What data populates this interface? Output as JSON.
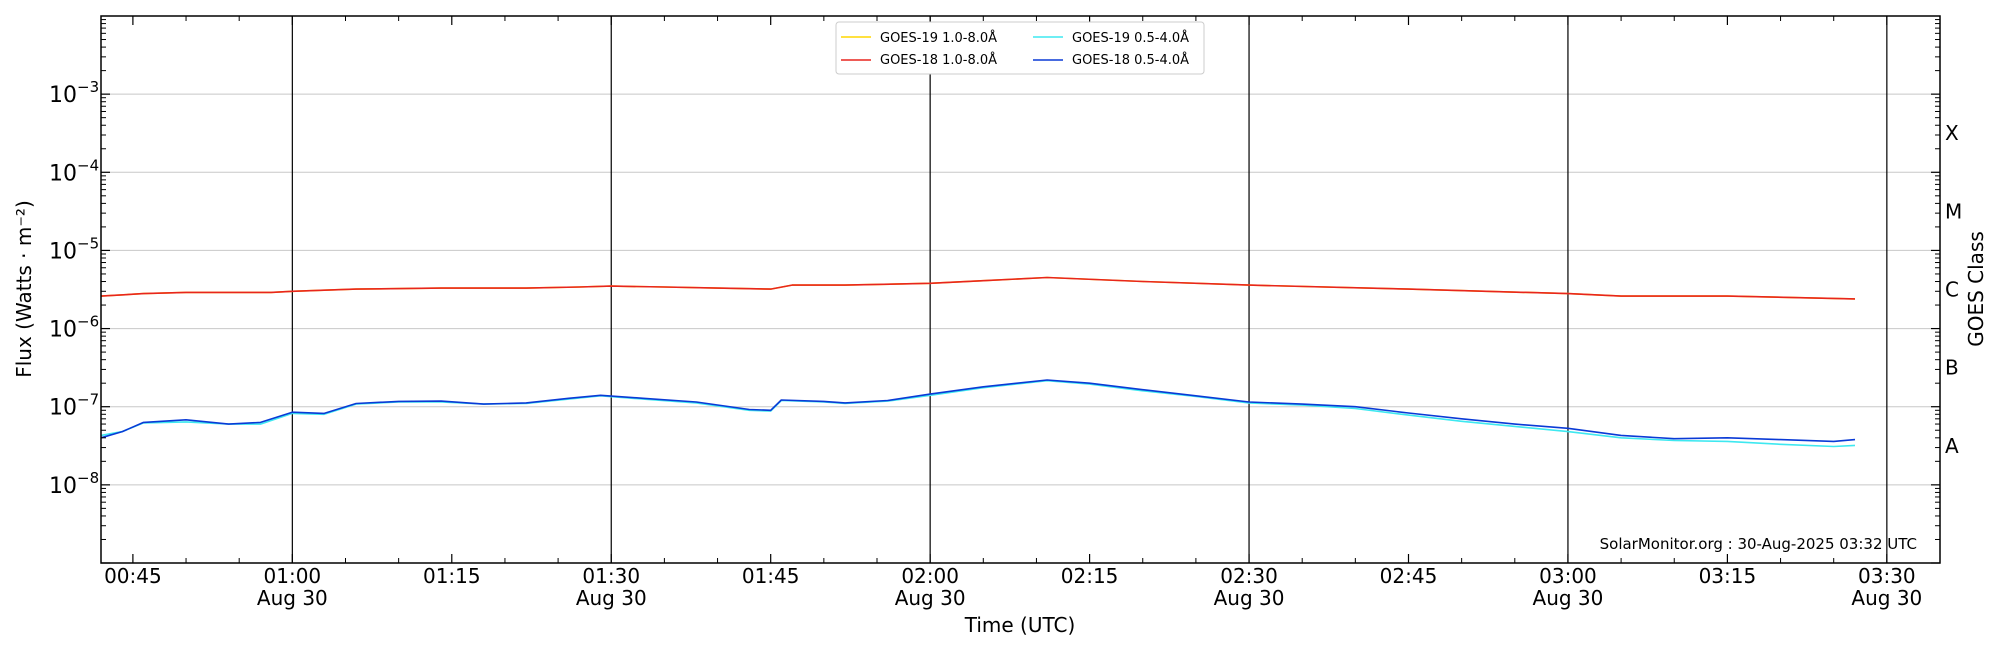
{
  "chart_data": {
    "type": "line",
    "title": "",
    "xlabel": "Time (UTC)",
    "ylabel": "Flux (Watts · m⁻²)",
    "y2label": "GOES Class",
    "yscale": "log",
    "ylim": [
      1e-09,
      0.01
    ],
    "xlim": [
      "2025-08-30 00:42",
      "2025-08-30 03:35"
    ],
    "grid": "horizontal gridlines at each decade; vertical lines at each 30 min",
    "legend_position": "top-center",
    "credit": "SolarMonitor.org : 30-Aug-2025 03:32 UTC",
    "y_ticks": [
      {
        "value": 1e-08,
        "base": "10",
        "exp": "−8"
      },
      {
        "value": 1e-07,
        "base": "10",
        "exp": "−7"
      },
      {
        "value": 1e-06,
        "base": "10",
        "exp": "−6"
      },
      {
        "value": 1e-05,
        "base": "10",
        "exp": "−5"
      },
      {
        "value": 0.0001,
        "base": "10",
        "exp": "−4"
      },
      {
        "value": 0.001,
        "base": "10",
        "exp": "−3"
      }
    ],
    "goes_classes": [
      {
        "label": "A",
        "value": 3.16e-08
      },
      {
        "label": "B",
        "value": 3.16e-07
      },
      {
        "label": "C",
        "value": 3.16e-06
      },
      {
        "label": "M",
        "value": 3.16e-05
      },
      {
        "label": "X",
        "value": 0.000316
      }
    ],
    "x_ticks": [
      {
        "time": "2025-08-30 00:45",
        "label": "00:45",
        "sub": ""
      },
      {
        "time": "2025-08-30 01:00",
        "label": "01:00",
        "sub": "Aug 30"
      },
      {
        "time": "2025-08-30 01:15",
        "label": "01:15",
        "sub": ""
      },
      {
        "time": "2025-08-30 01:30",
        "label": "01:30",
        "sub": "Aug 30"
      },
      {
        "time": "2025-08-30 01:45",
        "label": "01:45",
        "sub": ""
      },
      {
        "time": "2025-08-30 02:00",
        "label": "02:00",
        "sub": "Aug 30"
      },
      {
        "time": "2025-08-30 02:15",
        "label": "02:15",
        "sub": ""
      },
      {
        "time": "2025-08-30 02:30",
        "label": "02:30",
        "sub": "Aug 30"
      },
      {
        "time": "2025-08-30 02:45",
        "label": "02:45",
        "sub": ""
      },
      {
        "time": "2025-08-30 03:00",
        "label": "03:00",
        "sub": "Aug 30"
      },
      {
        "time": "2025-08-30 03:15",
        "label": "03:15",
        "sub": ""
      },
      {
        "time": "2025-08-30 03:30",
        "label": "03:30",
        "sub": "Aug 30"
      }
    ],
    "vlines": [
      "2025-08-30 01:00",
      "2025-08-30 01:30",
      "2025-08-30 02:00",
      "2025-08-30 02:30",
      "2025-08-30 03:00",
      "2025-08-30 03:30"
    ],
    "series": [
      {
        "name": "GOES-19 1.0-8.0Å",
        "color": "#ffd700",
        "x": [
          "2025-08-30 00:42",
          "2025-08-30 00:46",
          "2025-08-30 00:50",
          "2025-08-30 00:55",
          "2025-08-30 00:58",
          "2025-08-30 01:00",
          "2025-08-30 01:03",
          "2025-08-30 01:06",
          "2025-08-30 01:14",
          "2025-08-30 01:22",
          "2025-08-30 01:27",
          "2025-08-30 01:30",
          "2025-08-30 01:35",
          "2025-08-30 01:40",
          "2025-08-30 01:45",
          "2025-08-30 01:47",
          "2025-08-30 01:52",
          "2025-08-30 02:00",
          "2025-08-30 02:05",
          "2025-08-30 02:11",
          "2025-08-30 02:20",
          "2025-08-30 02:30",
          "2025-08-30 02:45",
          "2025-08-30 03:00",
          "2025-08-30 03:05",
          "2025-08-30 03:15",
          "2025-08-30 03:27"
        ],
        "y": [
          2.6e-06,
          2.8e-06,
          2.9e-06,
          2.9e-06,
          2.9e-06,
          3e-06,
          3.1e-06,
          3.2e-06,
          3.3e-06,
          3.3e-06,
          3.4e-06,
          3.5e-06,
          3.4e-06,
          3.3e-06,
          3.2e-06,
          3.6e-06,
          3.6e-06,
          3.8e-06,
          4.1e-06,
          4.5e-06,
          4e-06,
          3.6e-06,
          3.2e-06,
          2.8e-06,
          2.6e-06,
          2.6e-06,
          2.4e-06
        ]
      },
      {
        "name": "GOES-18 1.0-8.0Å",
        "color": "#e8251e",
        "x": [
          "2025-08-30 00:42",
          "2025-08-30 00:46",
          "2025-08-30 00:50",
          "2025-08-30 00:55",
          "2025-08-30 00:58",
          "2025-08-30 01:00",
          "2025-08-30 01:03",
          "2025-08-30 01:06",
          "2025-08-30 01:14",
          "2025-08-30 01:22",
          "2025-08-30 01:27",
          "2025-08-30 01:30",
          "2025-08-30 01:35",
          "2025-08-30 01:40",
          "2025-08-30 01:45",
          "2025-08-30 01:47",
          "2025-08-30 01:52",
          "2025-08-30 02:00",
          "2025-08-30 02:05",
          "2025-08-30 02:11",
          "2025-08-30 02:20",
          "2025-08-30 02:30",
          "2025-08-30 02:45",
          "2025-08-30 03:00",
          "2025-08-30 03:05",
          "2025-08-30 03:15",
          "2025-08-30 03:27"
        ],
        "y": [
          2.6e-06,
          2.8e-06,
          2.9e-06,
          2.9e-06,
          2.9e-06,
          3e-06,
          3.1e-06,
          3.2e-06,
          3.3e-06,
          3.3e-06,
          3.4e-06,
          3.5e-06,
          3.4e-06,
          3.3e-06,
          3.2e-06,
          3.6e-06,
          3.6e-06,
          3.8e-06,
          4.1e-06,
          4.5e-06,
          4e-06,
          3.6e-06,
          3.2e-06,
          2.8e-06,
          2.6e-06,
          2.6e-06,
          2.4e-06
        ]
      },
      {
        "name": "GOES-19 0.5-4.0Å",
        "color": "#3ee8f0",
        "x": [
          "2025-08-30 00:42",
          "2025-08-30 00:44",
          "2025-08-30 00:46",
          "2025-08-30 00:50",
          "2025-08-30 00:54",
          "2025-08-30 00:57",
          "2025-08-30 01:00",
          "2025-08-30 01:03",
          "2025-08-30 01:06",
          "2025-08-30 01:10",
          "2025-08-30 01:14",
          "2025-08-30 01:18",
          "2025-08-30 01:22",
          "2025-08-30 01:26",
          "2025-08-30 01:29",
          "2025-08-30 01:33",
          "2025-08-30 01:38",
          "2025-08-30 01:43",
          "2025-08-30 01:45",
          "2025-08-30 01:46",
          "2025-08-30 01:50",
          "2025-08-30 01:52",
          "2025-08-30 01:56",
          "2025-08-30 02:00",
          "2025-08-30 02:05",
          "2025-08-30 02:11",
          "2025-08-30 02:15",
          "2025-08-30 02:20",
          "2025-08-30 02:25",
          "2025-08-30 02:30",
          "2025-08-30 02:35",
          "2025-08-30 02:40",
          "2025-08-30 02:45",
          "2025-08-30 02:50",
          "2025-08-30 02:55",
          "2025-08-30 03:00",
          "2025-08-30 03:05",
          "2025-08-30 03:10",
          "2025-08-30 03:15",
          "2025-08-30 03:20",
          "2025-08-30 03:25",
          "2025-08-30 03:27"
        ],
        "y": [
          4.3e-08,
          4.8e-08,
          6.2e-08,
          6.4e-08,
          6e-08,
          6e-08,
          8.2e-08,
          8e-08,
          1.08e-07,
          1.15e-07,
          1.15e-07,
          1.08e-07,
          1.1e-07,
          1.25e-07,
          1.38e-07,
          1.25e-07,
          1.12e-07,
          9e-08,
          8.8e-08,
          1.2e-07,
          1.15e-07,
          1.1e-07,
          1.18e-07,
          1.4e-07,
          1.75e-07,
          2.15e-07,
          1.95e-07,
          1.6e-07,
          1.35e-07,
          1.12e-07,
          1.05e-07,
          9.5e-08,
          7.8e-08,
          6.5e-08,
          5.6e-08,
          4.8e-08,
          4e-08,
          3.7e-08,
          3.6e-08,
          3.3e-08,
          3.1e-08,
          3.2e-08
        ]
      },
      {
        "name": "GOES-18 0.5-4.0Å",
        "color": "#0a3ad6",
        "x": [
          "2025-08-30 00:42",
          "2025-08-30 00:44",
          "2025-08-30 00:46",
          "2025-08-30 00:50",
          "2025-08-30 00:54",
          "2025-08-30 00:57",
          "2025-08-30 01:00",
          "2025-08-30 01:03",
          "2025-08-30 01:06",
          "2025-08-30 01:10",
          "2025-08-30 01:14",
          "2025-08-30 01:18",
          "2025-08-30 01:22",
          "2025-08-30 01:26",
          "2025-08-30 01:29",
          "2025-08-30 01:33",
          "2025-08-30 01:38",
          "2025-08-30 01:43",
          "2025-08-30 01:45",
          "2025-08-30 01:46",
          "2025-08-30 01:50",
          "2025-08-30 01:52",
          "2025-08-30 01:56",
          "2025-08-30 02:00",
          "2025-08-30 02:05",
          "2025-08-30 02:11",
          "2025-08-30 02:15",
          "2025-08-30 02:20",
          "2025-08-30 02:25",
          "2025-08-30 02:30",
          "2025-08-30 02:35",
          "2025-08-30 02:40",
          "2025-08-30 02:45",
          "2025-08-30 02:50",
          "2025-08-30 02:55",
          "2025-08-30 03:00",
          "2025-08-30 03:05",
          "2025-08-30 03:10",
          "2025-08-30 03:15",
          "2025-08-30 03:20",
          "2025-08-30 03:25",
          "2025-08-30 03:27"
        ],
        "y": [
          4e-08,
          4.8e-08,
          6.3e-08,
          6.8e-08,
          6e-08,
          6.3e-08,
          8.5e-08,
          8.2e-08,
          1.1e-07,
          1.17e-07,
          1.18e-07,
          1.08e-07,
          1.12e-07,
          1.28e-07,
          1.4e-07,
          1.28e-07,
          1.15e-07,
          9.2e-08,
          9e-08,
          1.22e-07,
          1.17e-07,
          1.12e-07,
          1.2e-07,
          1.45e-07,
          1.8e-07,
          2.2e-07,
          2e-07,
          1.65e-07,
          1.38e-07,
          1.15e-07,
          1.08e-07,
          1e-07,
          8.3e-08,
          7e-08,
          6e-08,
          5.3e-08,
          4.3e-08,
          3.9e-08,
          4e-08,
          3.8e-08,
          3.6e-08,
          3.8e-08
        ]
      }
    ]
  }
}
